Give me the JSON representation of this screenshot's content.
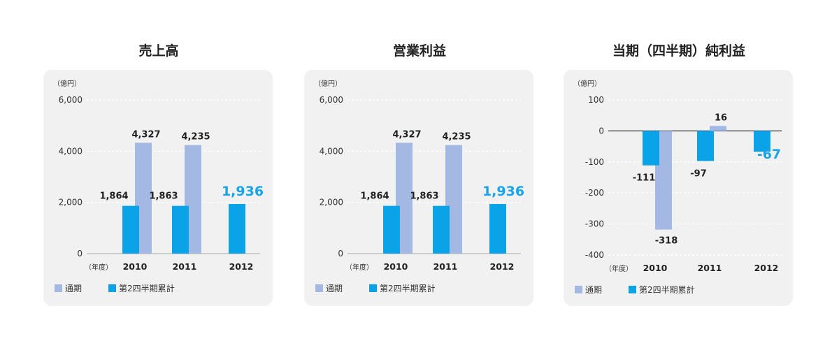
{
  "colors": {
    "full_year": "#a3b9e3",
    "q2_cumulative": "#0aa3e8",
    "highlight_text": "#1aa3e8",
    "panel_bg": "#f1f1f1"
  },
  "chart_data": [
    {
      "type": "bar",
      "title": "売上高",
      "unit_label": "（億円）",
      "xlabel": "（年度）",
      "categories": [
        "2010",
        "2011",
        "2012"
      ],
      "ylim": [
        0,
        6000
      ],
      "yticks": [
        0,
        2000,
        4000,
        6000
      ],
      "ytick_labels": [
        "0",
        "2,000",
        "4,000",
        "6,000"
      ],
      "grid": true,
      "legend_position": "bottom-left",
      "series": [
        {
          "name": "通期",
          "values": [
            4327,
            4235,
            null
          ],
          "labels": [
            "4,327",
            "4,235",
            ""
          ]
        },
        {
          "name": "第2四半期累計",
          "values": [
            1864,
            1863,
            1936
          ],
          "labels": [
            "1,864",
            "1,863",
            "1,936"
          ]
        }
      ]
    },
    {
      "type": "bar",
      "title": "営業利益",
      "unit_label": "（億円）",
      "xlabel": "（年度）",
      "categories": [
        "2010",
        "2011",
        "2012"
      ],
      "ylim": [
        0,
        6000
      ],
      "yticks": [
        0,
        2000,
        4000,
        6000
      ],
      "ytick_labels": [
        "0",
        "2,000",
        "4,000",
        "6,000"
      ],
      "grid": true,
      "legend_position": "bottom-left",
      "series": [
        {
          "name": "通期",
          "values": [
            4327,
            4235,
            null
          ],
          "labels": [
            "4,327",
            "4,235",
            ""
          ]
        },
        {
          "name": "第2四半期累計",
          "values": [
            1864,
            1863,
            1936
          ],
          "labels": [
            "1,864",
            "1,863",
            "1,936"
          ]
        }
      ]
    },
    {
      "type": "bar",
      "title": "当期（四半期）純利益",
      "unit_label": "（億円）",
      "xlabel": "（年度）",
      "categories": [
        "2010",
        "2011",
        "2012"
      ],
      "ylim": [
        -400,
        100
      ],
      "yticks": [
        -400,
        -300,
        -200,
        -100,
        0,
        100
      ],
      "ytick_labels": [
        "-400",
        "-300",
        "-200",
        "-100",
        "0",
        "100"
      ],
      "grid": true,
      "legend_position": "bottom-left",
      "series": [
        {
          "name": "通期",
          "values": [
            -318,
            16,
            null
          ],
          "labels": [
            "-318",
            "16",
            ""
          ]
        },
        {
          "name": "第2四半期累計",
          "values": [
            -111,
            -97,
            -67
          ],
          "labels": [
            "-111",
            "-97",
            "-67"
          ]
        }
      ]
    }
  ]
}
